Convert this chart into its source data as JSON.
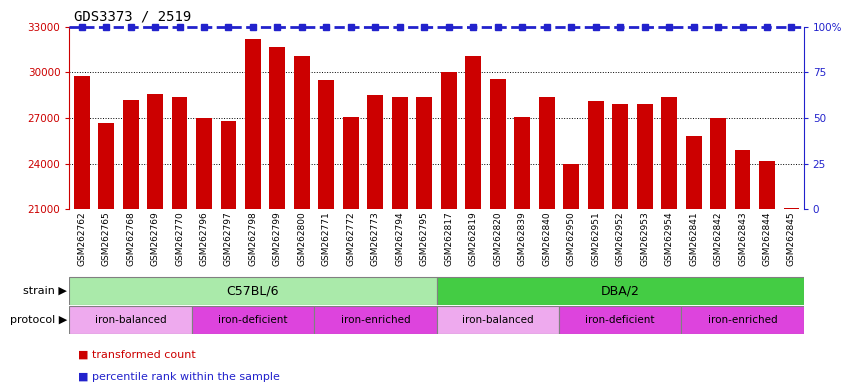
{
  "title": "GDS3373 / 2519",
  "samples": [
    "GSM262762",
    "GSM262765",
    "GSM262768",
    "GSM262769",
    "GSM262770",
    "GSM262796",
    "GSM262797",
    "GSM262798",
    "GSM262799",
    "GSM262800",
    "GSM262771",
    "GSM262772",
    "GSM262773",
    "GSM262794",
    "GSM262795",
    "GSM262817",
    "GSM262819",
    "GSM262820",
    "GSM262839",
    "GSM262840",
    "GSM262950",
    "GSM262951",
    "GSM262952",
    "GSM262953",
    "GSM262954",
    "GSM262841",
    "GSM262842",
    "GSM262843",
    "GSM262844",
    "GSM262845"
  ],
  "values": [
    29800,
    26700,
    28200,
    28600,
    28400,
    27000,
    26800,
    32200,
    31700,
    31100,
    29500,
    27100,
    28500,
    28400,
    28400,
    30000,
    31100,
    29600,
    27100,
    28400,
    24000,
    28100,
    27900,
    27900,
    28400,
    25800,
    27000,
    24900,
    24200,
    21100
  ],
  "bar_color": "#cc0000",
  "dot_color": "#2222cc",
  "ylim_left": [
    21000,
    33000
  ],
  "yticks_left": [
    21000,
    24000,
    27000,
    30000,
    33000
  ],
  "ylim_right": [
    0,
    100
  ],
  "yticks_right": [
    0,
    25,
    50,
    75,
    100
  ],
  "yticklabels_right": [
    "0",
    "25",
    "50",
    "75",
    "100%"
  ],
  "strain_groups": [
    {
      "label": "C57BL/6",
      "start": 0,
      "end": 15,
      "color": "#aaeaaa"
    },
    {
      "label": "DBA/2",
      "start": 15,
      "end": 30,
      "color": "#44cc44"
    }
  ],
  "protocol_groups": [
    {
      "label": "iron-balanced",
      "start": 0,
      "end": 5,
      "color": "#eeaaee"
    },
    {
      "label": "iron-deficient",
      "start": 5,
      "end": 10,
      "color": "#dd44dd"
    },
    {
      "label": "iron-enriched",
      "start": 10,
      "end": 15,
      "color": "#dd44dd"
    },
    {
      "label": "iron-balanced",
      "start": 15,
      "end": 20,
      "color": "#eeaaee"
    },
    {
      "label": "iron-deficient",
      "start": 20,
      "end": 25,
      "color": "#dd44dd"
    },
    {
      "label": "iron-enriched",
      "start": 25,
      "end": 30,
      "color": "#dd44dd"
    }
  ],
  "legend_items": [
    {
      "label": "transformed count",
      "color": "#cc0000"
    },
    {
      "label": "percentile rank within the sample",
      "color": "#2222cc"
    }
  ],
  "strain_label": "strain",
  "protocol_label": "protocol",
  "xtick_bg": "#d8d8d8",
  "title_fontsize": 10,
  "axis_fontsize": 7.5,
  "xtick_fontsize": 6.5,
  "bar_width": 0.65
}
